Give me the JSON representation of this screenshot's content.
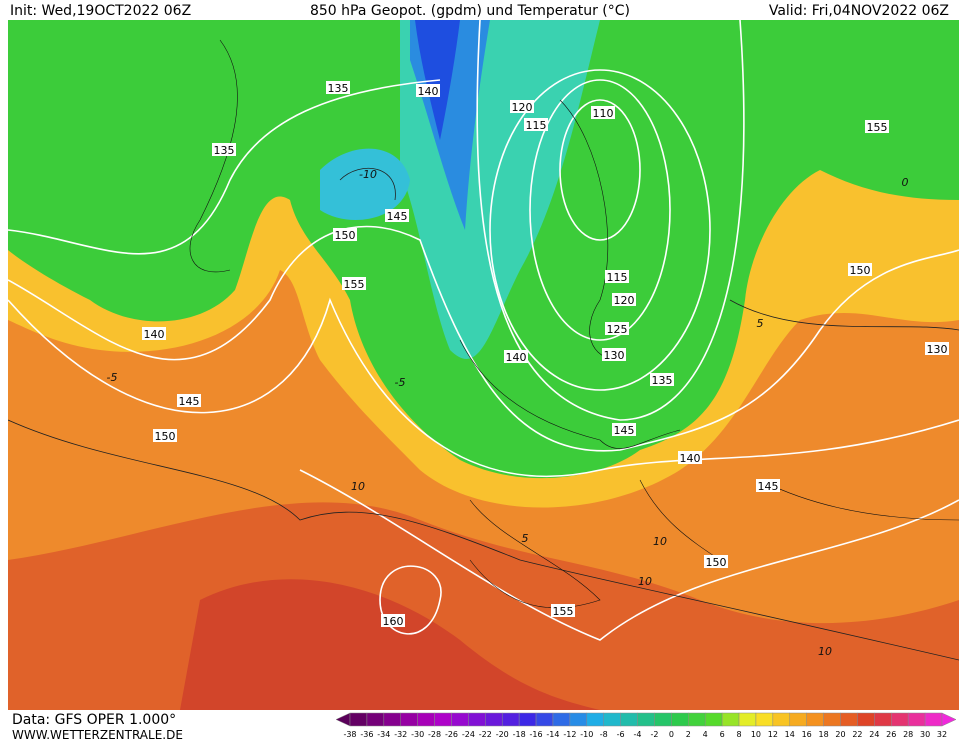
{
  "header": {
    "init": "Init: Wed,19OCT2022 06Z",
    "title": "850 hPa Geopot. (gpdm) und Temperatur (°C)",
    "valid": "Valid: Fri,04NOV2022 06Z"
  },
  "footer": {
    "source": "Data: GFS OPER 1.000°",
    "website": "WWW.WETTERZENTRALE.DE"
  },
  "map": {
    "geopotential_labels": [
      135,
      140,
      135,
      120,
      115,
      110,
      155,
      145,
      150,
      155,
      150,
      140,
      115,
      120,
      125,
      130,
      140,
      135,
      130,
      145,
      150,
      145,
      140,
      145,
      150,
      160,
      155
    ],
    "temperature_labels": [
      -10,
      -5,
      -5,
      5,
      0,
      10,
      5,
      10,
      10,
      10
    ]
  },
  "colorbar": {
    "ticks": [
      -38,
      -36,
      -34,
      -32,
      -30,
      -28,
      -26,
      -24,
      -22,
      -20,
      -18,
      -16,
      -14,
      -12,
      -10,
      -8,
      -6,
      -4,
      -2,
      0,
      2,
      4,
      6,
      8,
      10,
      12,
      14,
      16,
      18,
      20,
      22,
      24,
      26,
      28,
      30,
      32
    ]
  }
}
